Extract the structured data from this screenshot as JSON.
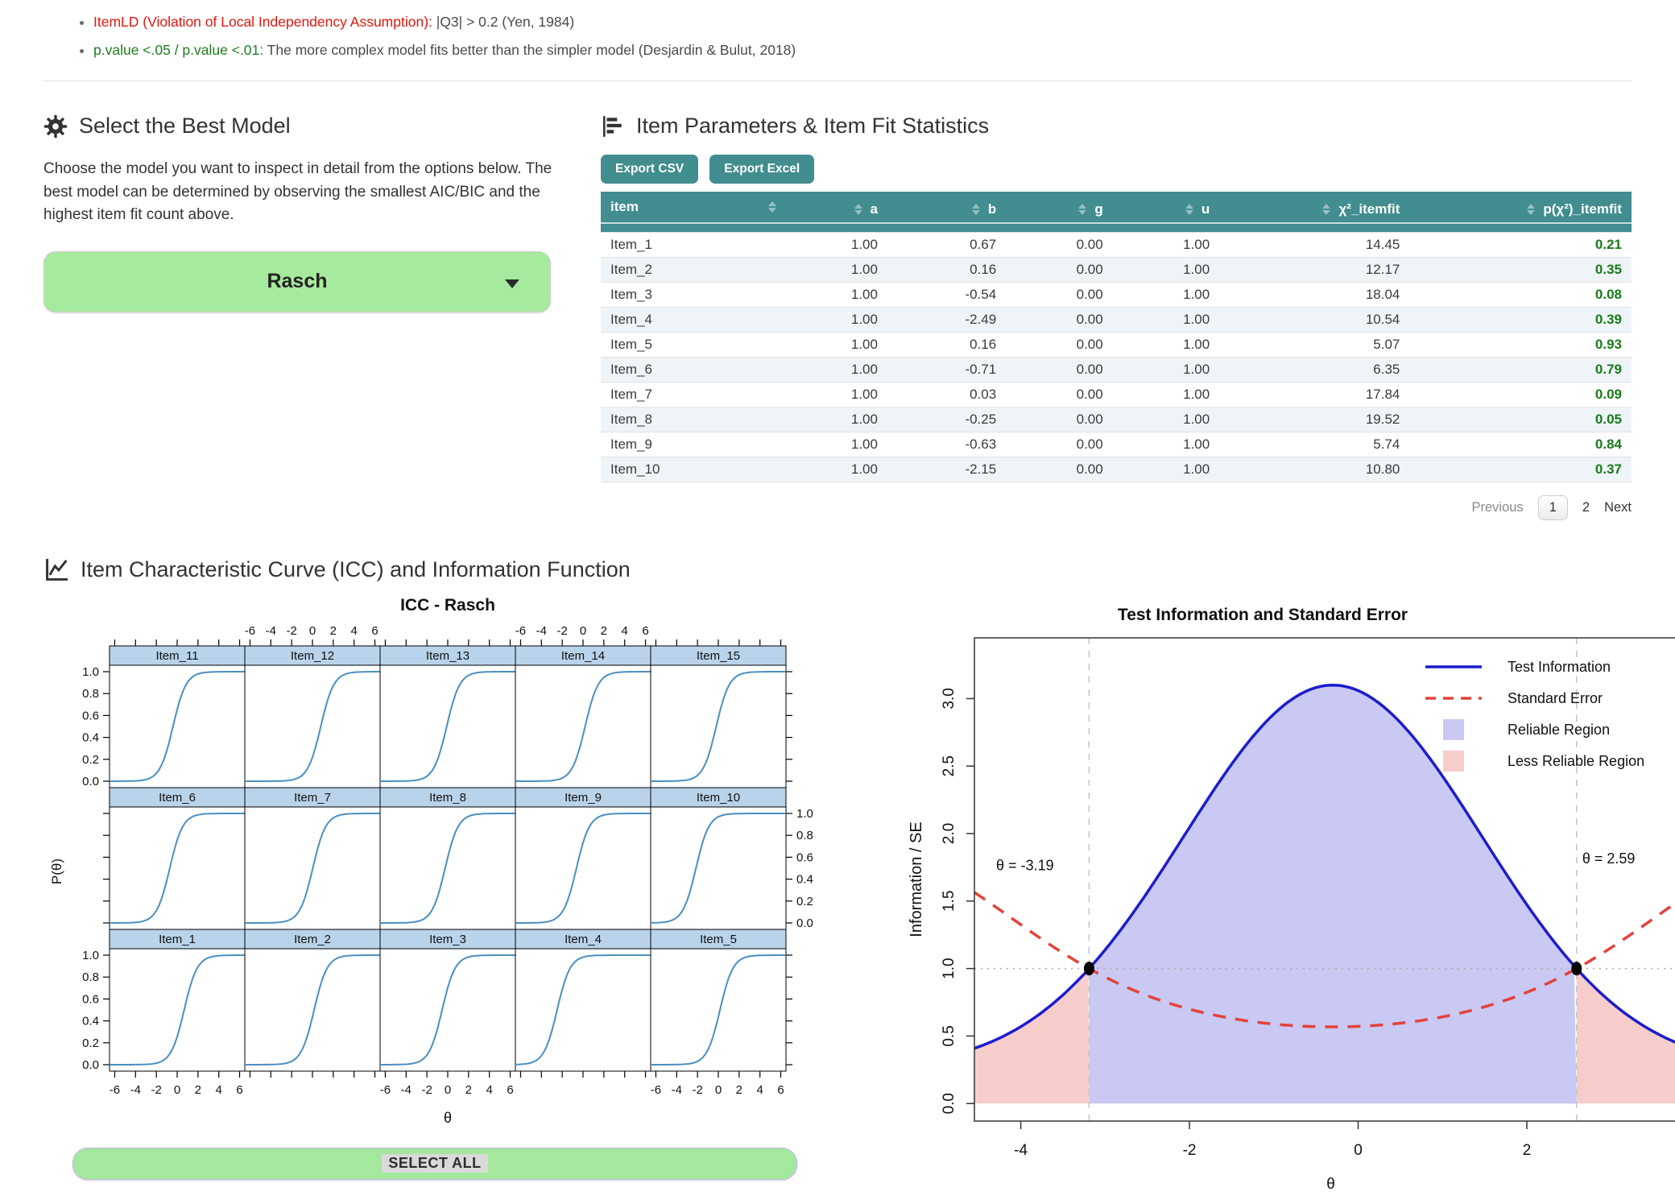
{
  "notes": {
    "bullet1_label": "ItemLD (Violation of Local Independency Assumption):",
    "bullet1_text": " |Q3| > 0.2 (Yen, 1984)",
    "bullet2_label": "p.value <.05 / p.value <.01:",
    "bullet2_text": " The more complex model fits better than the simpler model (Desjardin & Bulut, 2018)"
  },
  "model_select": {
    "title": "Select the Best Model",
    "description": "Choose the model you want to inspect in detail from the options below. The best model can be determined by observing the smallest AIC/BIC and the highest item fit count above.",
    "selected_model": "Rasch"
  },
  "item_table": {
    "title": "Item Parameters & Item Fit Statistics",
    "export_csv_label": "Export CSV",
    "export_excel_label": "Export Excel",
    "columns": [
      "item",
      "a",
      "b",
      "g",
      "u",
      "χ²_itemfit",
      "p(χ²)_itemfit"
    ],
    "rows": [
      [
        "Item_1",
        "1.00",
        "0.67",
        "0.00",
        "1.00",
        "14.45",
        "0.21"
      ],
      [
        "Item_2",
        "1.00",
        "0.16",
        "0.00",
        "1.00",
        "12.17",
        "0.35"
      ],
      [
        "Item_3",
        "1.00",
        "-0.54",
        "0.00",
        "1.00",
        "18.04",
        "0.08"
      ],
      [
        "Item_4",
        "1.00",
        "-2.49",
        "0.00",
        "1.00",
        "10.54",
        "0.39"
      ],
      [
        "Item_5",
        "1.00",
        "0.16",
        "0.00",
        "1.00",
        "5.07",
        "0.93"
      ],
      [
        "Item_6",
        "1.00",
        "-0.71",
        "0.00",
        "1.00",
        "6.35",
        "0.79"
      ],
      [
        "Item_7",
        "1.00",
        "0.03",
        "0.00",
        "1.00",
        "17.84",
        "0.09"
      ],
      [
        "Item_8",
        "1.00",
        "-0.25",
        "0.00",
        "1.00",
        "19.52",
        "0.05"
      ],
      [
        "Item_9",
        "1.00",
        "-0.63",
        "0.00",
        "1.00",
        "5.74",
        "0.84"
      ],
      [
        "Item_10",
        "1.00",
        "-2.15",
        "0.00",
        "1.00",
        "10.80",
        "0.37"
      ]
    ],
    "pagination": {
      "previous": "Previous",
      "page1": "1",
      "page2": "2",
      "next": "Next"
    }
  },
  "icc_section": {
    "title": "Item Characteristic Curve (ICC) and Information Function"
  },
  "select_all_label": "SELECT ALL",
  "colors": {
    "teal": "#418d8f",
    "green_button": "#a6ea9d",
    "strip_blue": "#b9d3ea",
    "icc_curve": "#4a8fc2",
    "info_blue": "#1c1ccd",
    "se_red": "#e4423a",
    "reliable_fill": "#c9c9f3",
    "less_reliable_fill": "#f7cdcc",
    "pvalue_green": "#1a7a1a",
    "note_red": "#e3170d",
    "note_green": "#1e7e1e"
  },
  "chart_data": [
    {
      "type": "line",
      "title": "ICC - Rasch",
      "xlabel": "θ",
      "ylabel": "P(θ)",
      "layout": "lattice 5 cols x 3 rows; bottom row Item_1-5, middle row Item_6-10, top row Item_11-15",
      "x_range": [
        -6.5,
        6.5
      ],
      "y_range": [
        0,
        1
      ],
      "x_ticks": [
        -6,
        -4,
        -2,
        0,
        2,
        4,
        6
      ],
      "y_ticks": [
        0.0,
        0.2,
        0.4,
        0.6,
        0.8,
        1.0
      ],
      "model": "P(θ) = 1 / (1 + exp(-slope·(θ - b)))",
      "slope": 1.6,
      "panels": [
        {
          "label": "Item_1",
          "b": 0.67
        },
        {
          "label": "Item_2",
          "b": 0.16
        },
        {
          "label": "Item_3",
          "b": -0.54
        },
        {
          "label": "Item_4",
          "b": -2.49
        },
        {
          "label": "Item_5",
          "b": 0.16
        },
        {
          "label": "Item_6",
          "b": -0.71
        },
        {
          "label": "Item_7",
          "b": 0.03
        },
        {
          "label": "Item_8",
          "b": -0.25
        },
        {
          "label": "Item_9",
          "b": -0.63
        },
        {
          "label": "Item_10",
          "b": -2.15
        },
        {
          "label": "Item_11",
          "b": -0.4
        },
        {
          "label": "Item_12",
          "b": 0.8
        },
        {
          "label": "Item_13",
          "b": -0.1
        },
        {
          "label": "Item_14",
          "b": 0.2
        },
        {
          "label": "Item_15",
          "b": -0.2
        }
      ]
    },
    {
      "type": "line",
      "title": "Test Information and Standard Error",
      "xlabel": "θ",
      "ylabel": "Information / SE",
      "x_range": [
        -4.55,
        3.9
      ],
      "y_range": [
        -0.13,
        3.45
      ],
      "x_ticks": [
        -4,
        -2,
        0,
        2
      ],
      "y_ticks": [
        0.0,
        0.5,
        1.0,
        1.5,
        2.0,
        2.5,
        3.0
      ],
      "series": [
        {
          "name": "Test Information",
          "style": "solid",
          "peak_x": -0.3,
          "peak_y": 3.1,
          "base": 0.25,
          "amplitude": 2.85,
          "two_sigma_sq": 6.256
        },
        {
          "name": "Standard Error",
          "style": "dashed",
          "min_x": -0.3,
          "min_y": 0.57,
          "formula": "1/sqrt(Information)"
        }
      ],
      "cutoffs": {
        "lower": -3.19,
        "upper": 2.59,
        "intersection_y": 1.0,
        "annotation_lower": "θ = -3.19",
        "annotation_upper": "θ = 2.59"
      },
      "legend": [
        "Test Information",
        "Standard Error",
        "Reliable Region",
        "Less Reliable Region"
      ],
      "grid": {
        "h_dotted_at": 1.0,
        "v_dashed_at": [
          -3.19,
          2.59
        ]
      }
    }
  ]
}
